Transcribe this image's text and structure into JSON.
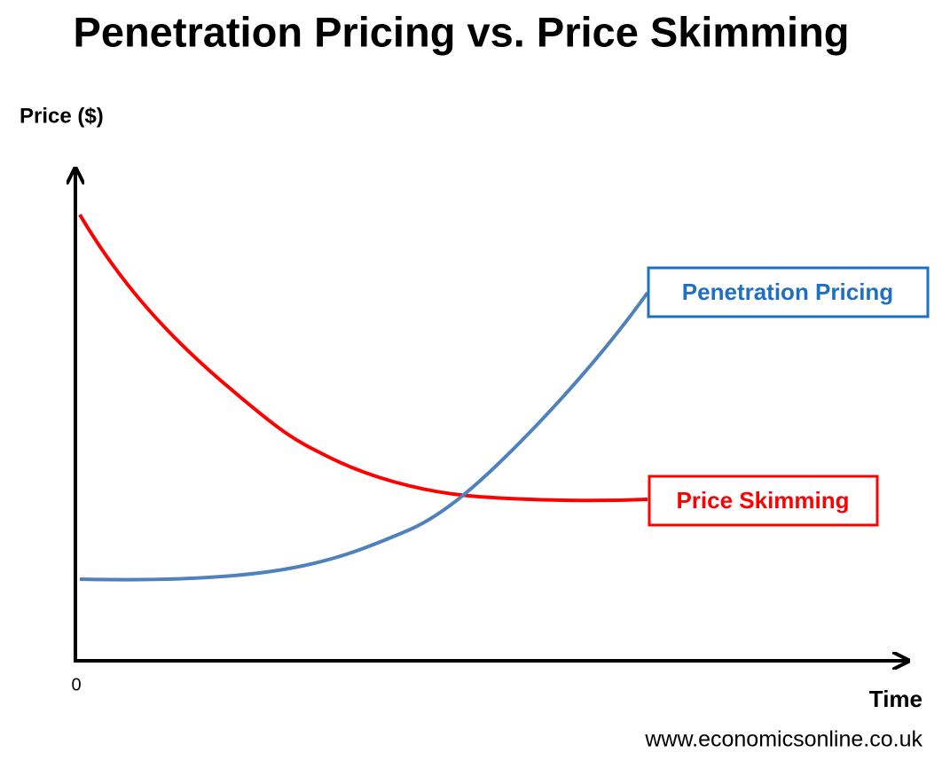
{
  "header": {
    "title": "Penetration Pricing vs. Price Skimming"
  },
  "axes": {
    "y_label": "Price ($)",
    "origin": "0",
    "x_label": "Time"
  },
  "curves": [
    {
      "label": "Penetration Pricing"
    },
    {
      "label": "Price Skimming"
    }
  ],
  "footer": {
    "source": "www.economicsonline.co.uk"
  }
}
